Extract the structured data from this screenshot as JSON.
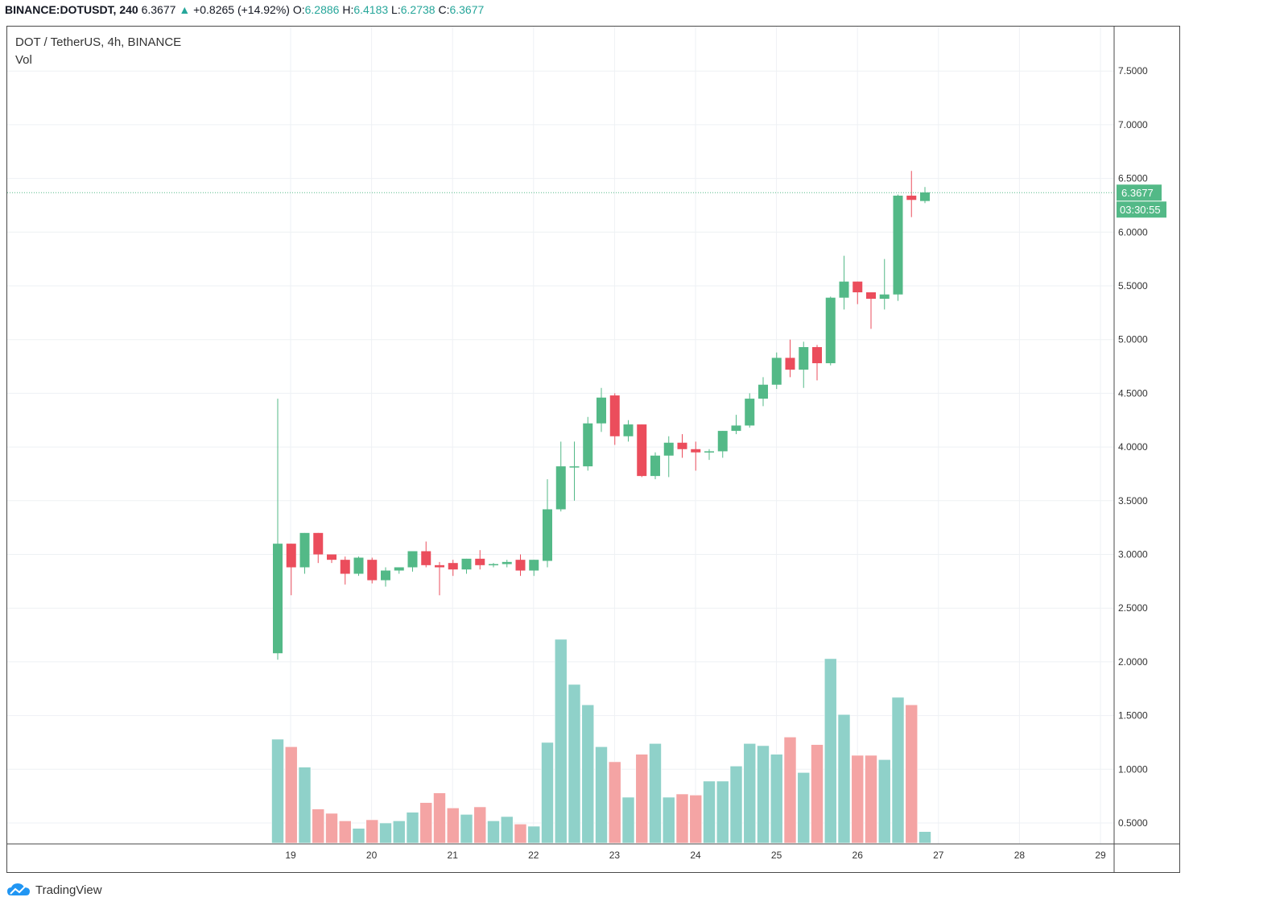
{
  "header": {
    "symbol": "BINANCE:DOTUSDT, 240",
    "price": "6.3677",
    "change": "+0.8265 (+14.92%)",
    "o_label": "O:",
    "o": "6.2886",
    "h_label": "H:",
    "h": "6.4183",
    "l_label": "L:",
    "l": "6.2738",
    "c_label": "C:",
    "c": "6.3677"
  },
  "chart_title": "DOT / TetherUS, 4h, BINANCE",
  "volume_label": "Vol",
  "price_badge": "6.3677",
  "countdown_badge": "03:30:55",
  "branding": "TradingView",
  "colors": {
    "up": "#53b987",
    "down": "#eb4d5c",
    "vol_up": "#8fd1c9",
    "vol_down": "#f4a4a4",
    "badge": "#53b987"
  },
  "chart_data": {
    "type": "candlestick",
    "x_ticks": [
      "19",
      "20",
      "21",
      "22",
      "23",
      "24",
      "25",
      "26",
      "27",
      "28",
      "29"
    ],
    "y_ticks": [
      "7.5000",
      "7.0000",
      "6.5000",
      "6.0000",
      "5.5000",
      "5.0000",
      "4.5000",
      "4.0000",
      "3.5000",
      "3.0000",
      "2.5000",
      "2.0000",
      "1.5000",
      "1.0000",
      "0.5000"
    ],
    "ylim": [
      0.3,
      7.9
    ],
    "candles": [
      [
        2.08,
        4.45,
        2.02,
        3.1
      ],
      [
        3.1,
        3.1,
        2.62,
        2.88
      ],
      [
        2.88,
        3.2,
        2.82,
        3.2
      ],
      [
        3.2,
        3.2,
        2.92,
        3.0
      ],
      [
        3.0,
        3.0,
        2.92,
        2.95
      ],
      [
        2.95,
        2.98,
        2.72,
        2.82
      ],
      [
        2.82,
        2.98,
        2.8,
        2.97
      ],
      [
        2.95,
        2.97,
        2.73,
        2.76
      ],
      [
        2.76,
        2.88,
        2.7,
        2.85
      ],
      [
        2.85,
        2.88,
        2.82,
        2.88
      ],
      [
        2.88,
        3.03,
        2.84,
        3.03
      ],
      [
        3.03,
        3.12,
        2.88,
        2.9
      ],
      [
        2.9,
        2.93,
        2.62,
        2.88
      ],
      [
        2.92,
        2.95,
        2.8,
        2.86
      ],
      [
        2.86,
        2.96,
        2.82,
        2.96
      ],
      [
        2.96,
        3.04,
        2.86,
        2.9
      ],
      [
        2.9,
        2.92,
        2.88,
        2.91
      ],
      [
        2.91,
        2.95,
        2.88,
        2.93
      ],
      [
        2.95,
        3.0,
        2.8,
        2.85
      ],
      [
        2.85,
        2.95,
        2.8,
        2.95
      ],
      [
        2.94,
        3.7,
        2.88,
        3.42
      ],
      [
        3.42,
        4.05,
        3.4,
        3.82
      ],
      [
        3.82,
        4.05,
        3.5,
        3.82
      ],
      [
        3.82,
        4.28,
        3.78,
        4.22
      ],
      [
        4.22,
        4.55,
        4.14,
        4.46
      ],
      [
        4.48,
        4.5,
        4.02,
        4.1
      ],
      [
        4.1,
        4.25,
        4.05,
        4.21
      ],
      [
        4.21,
        4.21,
        3.72,
        3.73
      ],
      [
        3.73,
        3.95,
        3.7,
        3.92
      ],
      [
        3.92,
        4.1,
        3.72,
        4.04
      ],
      [
        4.04,
        4.12,
        3.9,
        3.98
      ],
      [
        3.98,
        4.05,
        3.78,
        3.95
      ],
      [
        3.95,
        3.98,
        3.88,
        3.96
      ],
      [
        3.96,
        4.15,
        3.9,
        4.15
      ],
      [
        4.15,
        4.3,
        4.12,
        4.2
      ],
      [
        4.2,
        4.5,
        4.18,
        4.45
      ],
      [
        4.45,
        4.65,
        4.38,
        4.58
      ],
      [
        4.58,
        4.88,
        4.54,
        4.83
      ],
      [
        4.83,
        5.0,
        4.65,
        4.72
      ],
      [
        4.72,
        4.98,
        4.55,
        4.93
      ],
      [
        4.93,
        4.95,
        4.62,
        4.78
      ],
      [
        4.78,
        5.4,
        4.76,
        5.39
      ],
      [
        5.39,
        5.78,
        5.28,
        5.54
      ],
      [
        5.54,
        5.54,
        5.33,
        5.44
      ],
      [
        5.44,
        5.44,
        5.1,
        5.38
      ],
      [
        5.38,
        5.75,
        5.28,
        5.42
      ],
      [
        5.42,
        6.35,
        5.36,
        6.34
      ],
      [
        6.34,
        6.57,
        6.14,
        6.3
      ],
      [
        6.29,
        6.42,
        6.27,
        6.37
      ]
    ],
    "volume": [
      1.28,
      1.21,
      1.02,
      0.63,
      0.59,
      0.52,
      0.45,
      0.53,
      0.5,
      0.52,
      0.6,
      0.69,
      0.78,
      0.64,
      0.58,
      0.65,
      0.52,
      0.56,
      0.49,
      0.47,
      1.25,
      2.21,
      1.79,
      1.6,
      1.21,
      1.07,
      0.74,
      1.14,
      1.24,
      0.74,
      0.77,
      0.76,
      0.89,
      0.89,
      1.03,
      1.24,
      1.22,
      1.14,
      1.3,
      0.97,
      1.23,
      2.03,
      1.51,
      1.13,
      1.13,
      1.09,
      1.67,
      1.6,
      0.42
    ]
  }
}
